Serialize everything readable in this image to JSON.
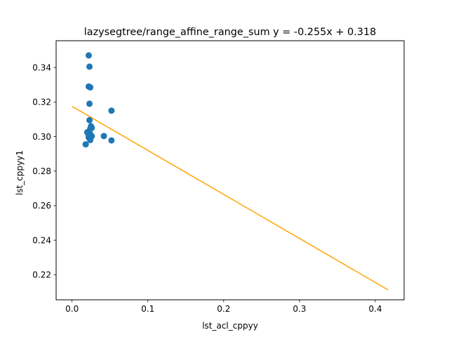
{
  "chart_data": {
    "type": "scatter",
    "title": "lazysegtree/range_affine_range_sum y = -0.255x + 0.318",
    "xlabel": "lst_acl_cppyy",
    "ylabel": "lst_cppyy1",
    "xlim": [
      -0.021,
      0.438
    ],
    "ylim": [
      0.2055,
      0.3555
    ],
    "grid": false,
    "xticks": [
      0.0,
      0.1,
      0.2,
      0.3,
      0.4
    ],
    "xtick_labels": [
      "0.0",
      "0.1",
      "0.2",
      "0.3",
      "0.4"
    ],
    "yticks": [
      0.22,
      0.24,
      0.26,
      0.28,
      0.3,
      0.32,
      0.34
    ],
    "ytick_labels": [
      "0.22",
      "0.24",
      "0.26",
      "0.28",
      "0.30",
      "0.32",
      "0.34"
    ],
    "series": [
      {
        "kind": "scatter",
        "color": "#1f77b4",
        "points": [
          [
            0.022,
            0.347
          ],
          [
            0.023,
            0.3405
          ],
          [
            0.022,
            0.329
          ],
          [
            0.024,
            0.3285
          ],
          [
            0.023,
            0.319
          ],
          [
            0.052,
            0.315
          ],
          [
            0.023,
            0.3095
          ],
          [
            0.025,
            0.306
          ],
          [
            0.026,
            0.305
          ],
          [
            0.024,
            0.3045
          ],
          [
            0.02,
            0.3025
          ],
          [
            0.024,
            0.3015
          ],
          [
            0.022,
            0.3005
          ],
          [
            0.026,
            0.3002
          ],
          [
            0.042,
            0.3003
          ],
          [
            0.022,
            0.2995
          ],
          [
            0.024,
            0.298
          ],
          [
            0.052,
            0.2978
          ],
          [
            0.018,
            0.2955
          ]
        ]
      },
      {
        "kind": "line",
        "color": "#ffa500",
        "points": [
          [
            0.0,
            0.3175
          ],
          [
            0.417,
            0.2112
          ]
        ]
      }
    ]
  }
}
